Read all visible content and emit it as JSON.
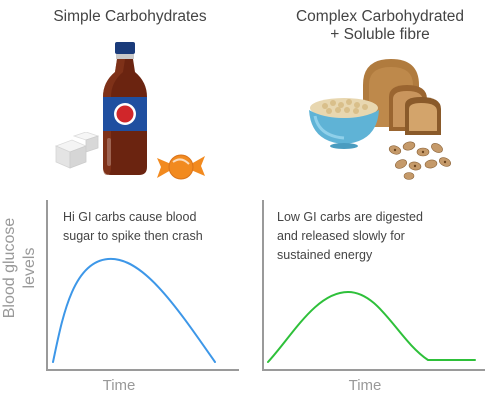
{
  "titles": {
    "left": "Simple Carbohydrates",
    "right_line1": "Complex Carbohydrated",
    "right_line2": "+  Soluble fibre"
  },
  "captions": {
    "left_lines": [
      "Hi GI carbs cause blood",
      "sugar to spike then crash"
    ],
    "right_lines": [
      "Low GI carbs are digested",
      "and released slowly for",
      "sustained energy"
    ]
  },
  "axes": {
    "y_label_line1": "Blood glucose",
    "y_label_line2": "levels",
    "x_label_left": "Time",
    "x_label_right": "Time"
  },
  "colors": {
    "left_curve": "#3d97e8",
    "right_curve": "#2ec03a",
    "soda_body": "#6b2410",
    "soda_label": "#1f4fa0",
    "soda_cap": "#1a3b7a",
    "candy": "#f28a1f",
    "bread": "#c08a4a",
    "bowl": "#5fb3d6",
    "beans": "#c59a6a"
  },
  "icons": [
    "soda-bottle-icon",
    "sugar-cube-icon",
    "candy-icon",
    "bread-icon",
    "cereal-bowl-icon",
    "beans-icon"
  ]
}
